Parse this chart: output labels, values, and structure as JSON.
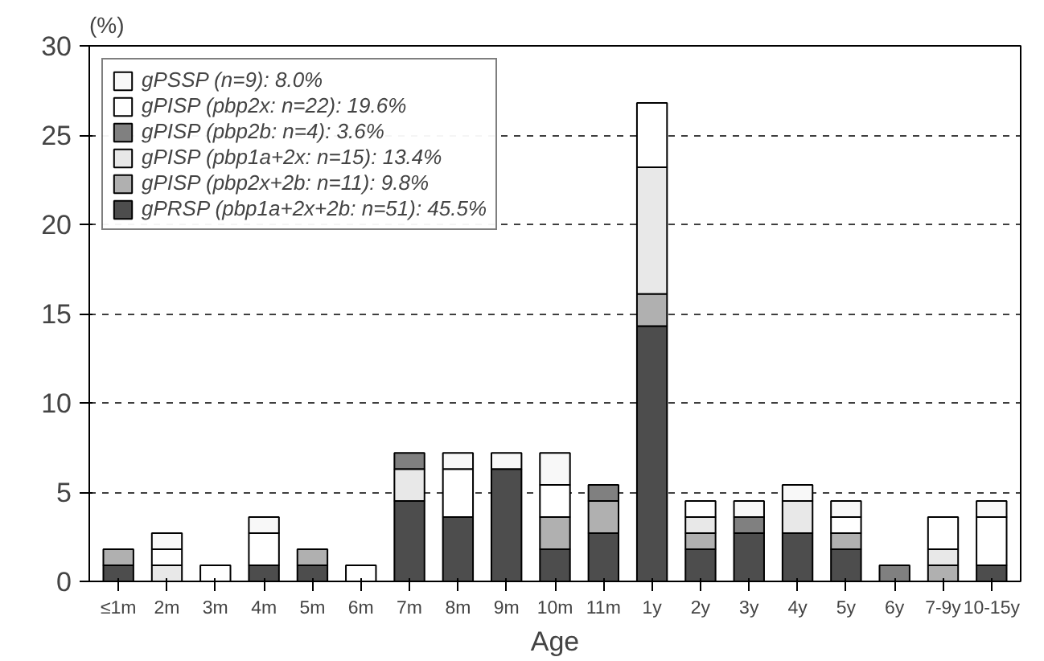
{
  "chart_data": {
    "type": "bar",
    "stacked": true,
    "xlabel": "Age",
    "ylabel": "(%)",
    "categories": [
      "≤1m",
      "2m",
      "3m",
      "4m",
      "5m",
      "6m",
      "7m",
      "8m",
      "9m",
      "10m",
      "11m",
      "1y",
      "2y",
      "3y",
      "4y",
      "5y",
      "6y",
      "7-9y",
      "10-15y"
    ],
    "series": [
      {
        "name": "gPRSP (pbp1a+2x+2b: n=51): 45.5%",
        "color": "#4d4d4d",
        "values": [
          0.9,
          null,
          null,
          0.9,
          0.9,
          null,
          4.5,
          3.6,
          6.3,
          1.8,
          2.7,
          14.3,
          1.8,
          2.7,
          2.7,
          1.8,
          null,
          null,
          0.9
        ]
      },
      {
        "name": "gPISP (pbp2x+2b: n=11): 9.8%",
        "color": "#b0b0b0",
        "values": [
          0.9,
          null,
          null,
          null,
          0.9,
          null,
          null,
          null,
          null,
          1.8,
          1.8,
          1.8,
          0.9,
          null,
          null,
          0.9,
          null,
          0.9,
          null
        ]
      },
      {
        "name": "gPISP (pbp1a+2x: n=15): 13.4%",
        "color": "#e8e8e8",
        "values": [
          null,
          0.9,
          null,
          null,
          null,
          null,
          1.8,
          null,
          null,
          null,
          null,
          7.1,
          0.9,
          null,
          1.8,
          null,
          null,
          0.9,
          null
        ]
      },
      {
        "name": "gPISP (pbp2b: n=4): 3.6%",
        "color": "#808080",
        "values": [
          null,
          null,
          null,
          null,
          null,
          null,
          0.9,
          null,
          null,
          null,
          0.9,
          null,
          null,
          0.9,
          null,
          null,
          0.9,
          null,
          null
        ]
      },
      {
        "name": "gPISP (pbp2x: n=22): 19.6%",
        "color": "#ffffff",
        "values": [
          null,
          0.9,
          0.9,
          1.8,
          null,
          0.9,
          null,
          2.7,
          null,
          1.8,
          null,
          3.6,
          0.9,
          null,
          null,
          0.9,
          null,
          1.8,
          2.7
        ]
      },
      {
        "name": "gPSSP (n=9): 8.0%",
        "color": "#f8f8f8",
        "values": [
          null,
          0.9,
          null,
          0.9,
          null,
          null,
          null,
          0.9,
          0.9,
          1.8,
          null,
          null,
          null,
          0.9,
          0.9,
          0.9,
          null,
          null,
          0.9
        ]
      }
    ],
    "ylim": [
      0,
      30
    ],
    "yticks": [
      0,
      5,
      10,
      15,
      20,
      25,
      30
    ],
    "grid": "y",
    "legend": "top left"
  }
}
